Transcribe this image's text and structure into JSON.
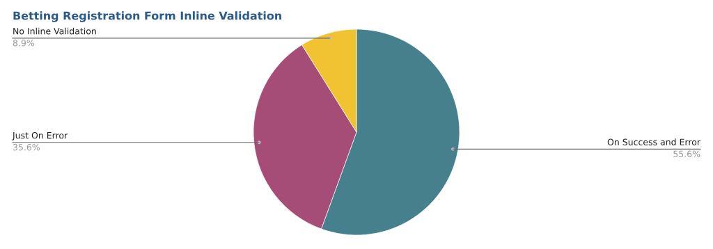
{
  "chart_data": {
    "type": "pie",
    "title": "Betting Registration Form Inline Validation",
    "categories": [
      "On Success and Error",
      "Just On Error",
      "No Inline Validation"
    ],
    "values": [
      55.6,
      35.6,
      8.9
    ],
    "colors": [
      "#46808c",
      "#a64d77",
      "#f1c232"
    ],
    "value_labels": [
      "55.6%",
      "35.6%",
      "8.9%"
    ],
    "legend": false
  }
}
